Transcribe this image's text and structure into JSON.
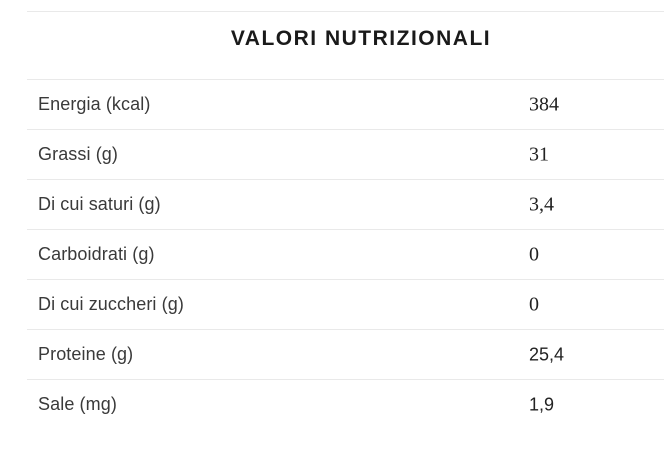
{
  "table": {
    "title": "VALORI NUTRIZIONALI",
    "rows": [
      {
        "label": "Energia (kcal)",
        "value": "384"
      },
      {
        "label": "Grassi (g)",
        "value": "31"
      },
      {
        "label": "Di cui saturi (g)",
        "value": "3,4"
      },
      {
        "label": "Carboidrati (g)",
        "value": "0"
      },
      {
        "label": "Di cui zuccheri (g)",
        "value": "0"
      },
      {
        "label": "Proteine (g)",
        "value": "25,4"
      },
      {
        "label": "Sale (mg)",
        "value": "1,9"
      }
    ],
    "colors": {
      "divider": "#e9e9e9",
      "title_text": "#1a1a1a",
      "label_text": "#3a3a3a",
      "value_text": "#222222",
      "background": "#ffffff"
    }
  }
}
